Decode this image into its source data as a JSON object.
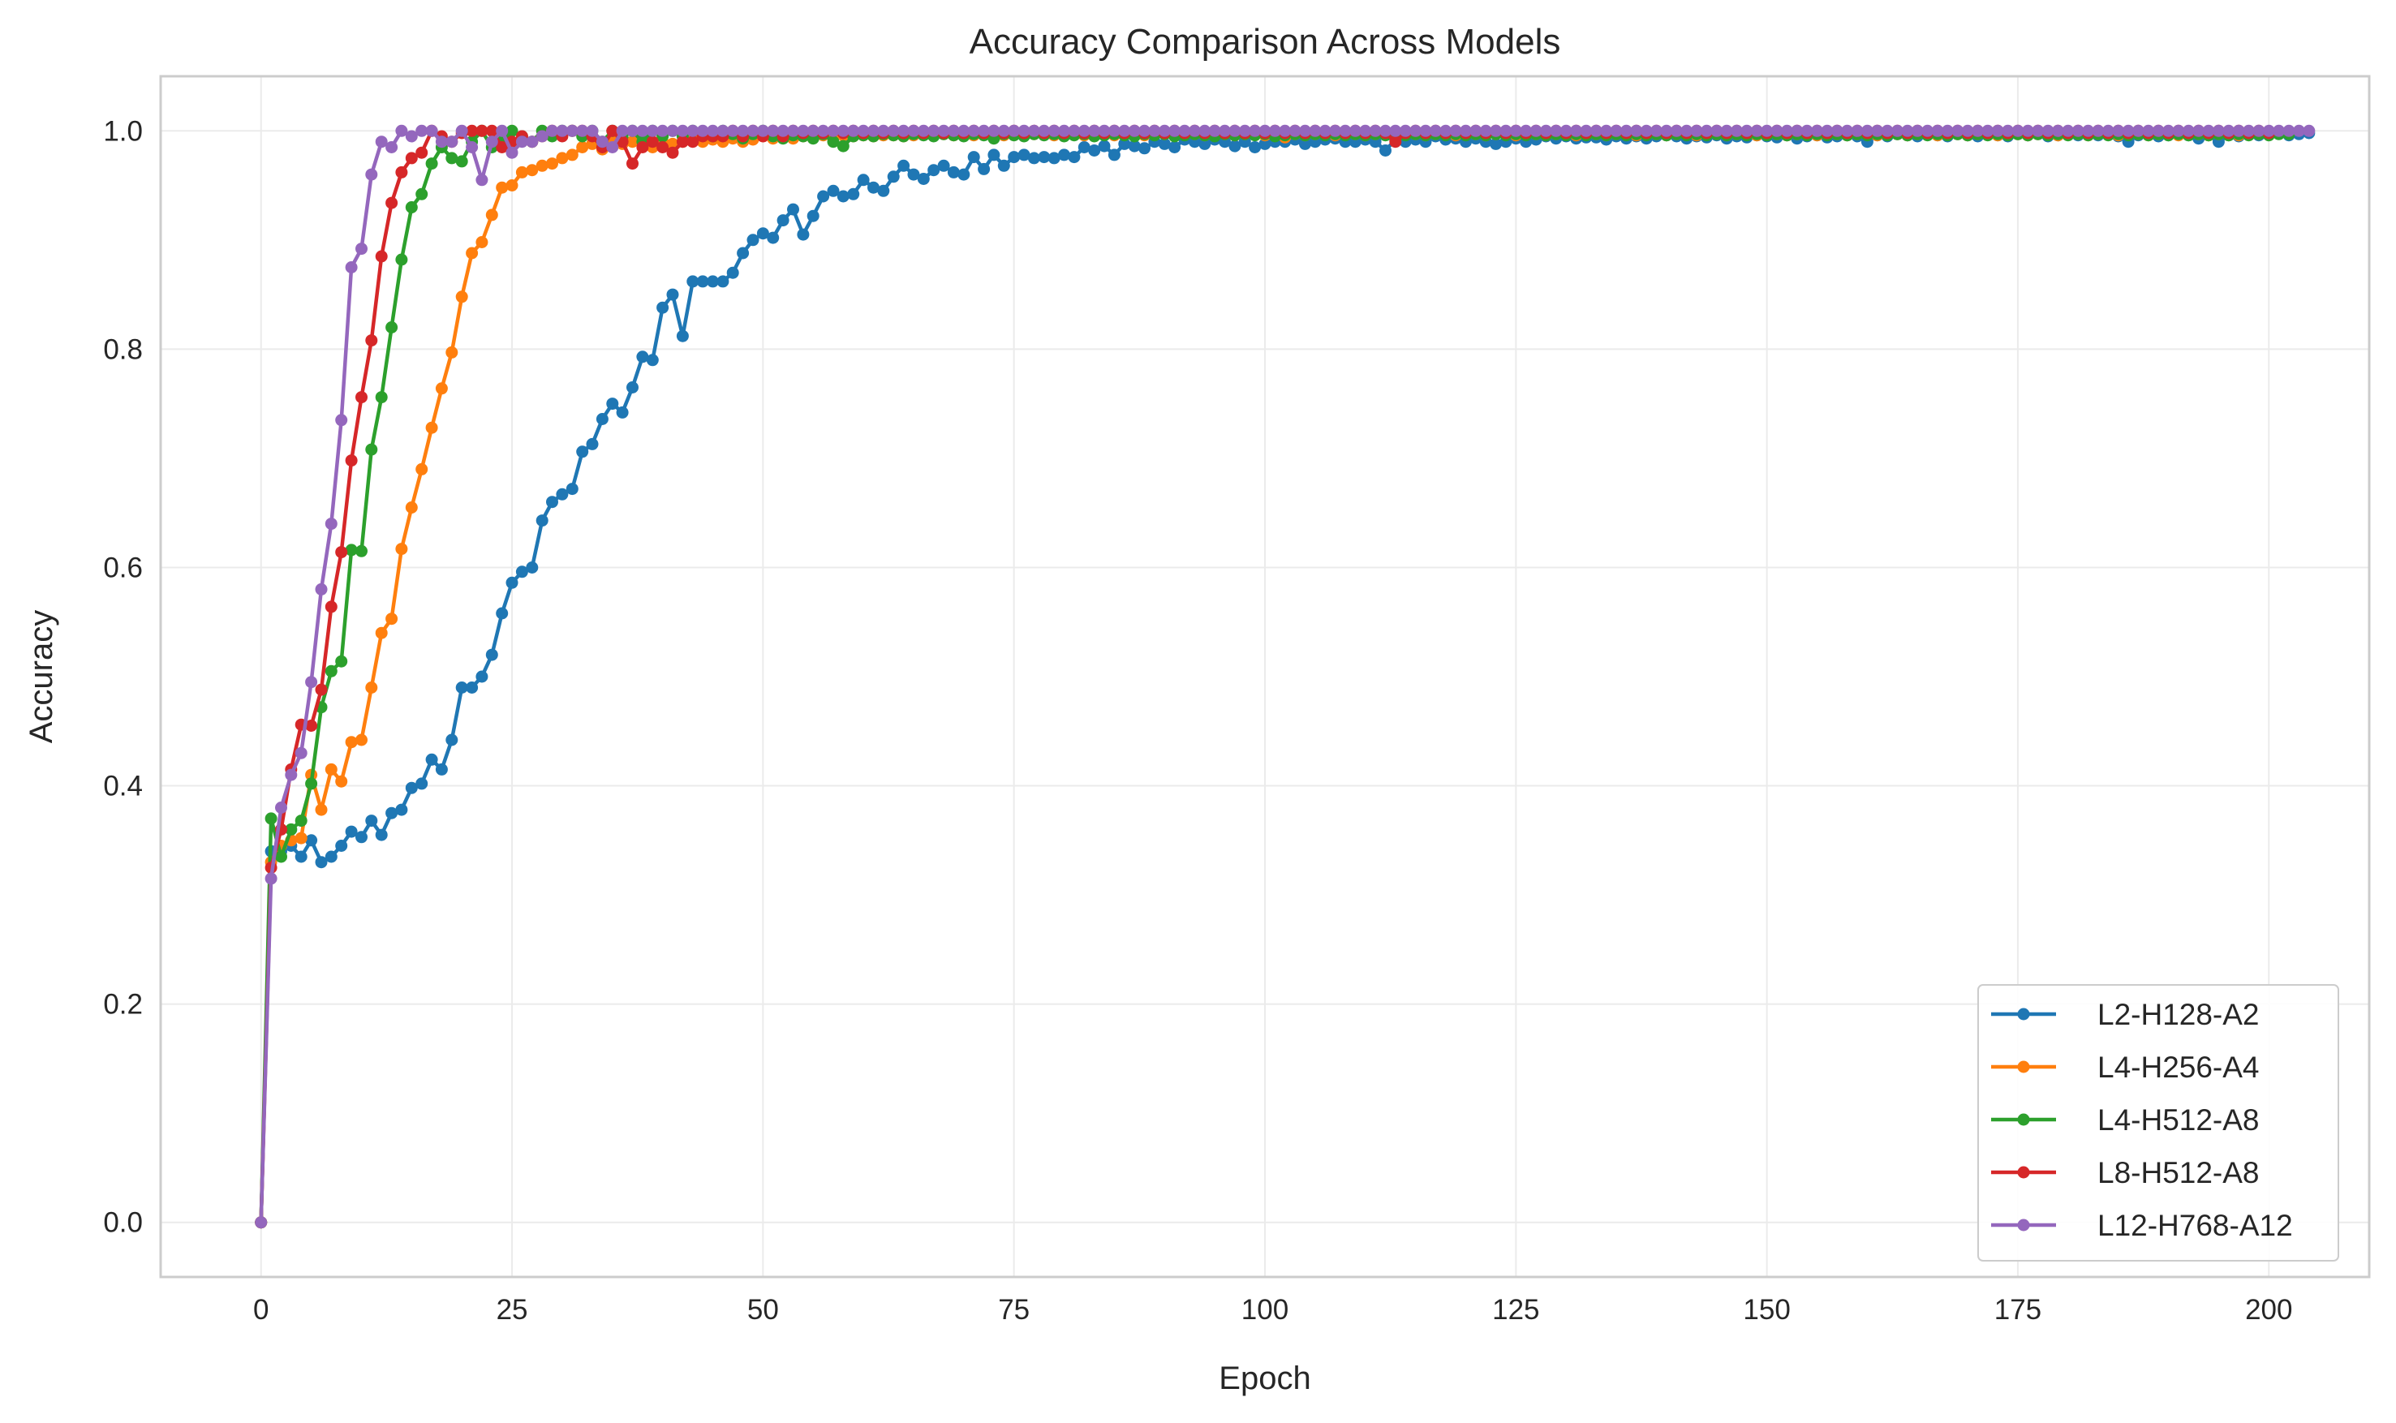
{
  "chart_data": {
    "type": "line",
    "title": "Accuracy Comparison Across Models",
    "xlabel": "Epoch",
    "ylabel": "Accuracy",
    "xlim": [
      -10,
      210
    ],
    "ylim": [
      -0.05,
      1.05
    ],
    "xticks": [
      0,
      25,
      50,
      75,
      100,
      125,
      150,
      175,
      200
    ],
    "xtick_labels": [
      "0",
      "25",
      "50",
      "75",
      "100",
      "125",
      "150",
      "175",
      "200"
    ],
    "yticks": [
      0.0,
      0.2,
      0.4,
      0.6,
      0.8,
      1.0
    ],
    "ytick_labels": [
      "0.0",
      "0.2",
      "0.4",
      "0.6",
      "0.8",
      "1.0"
    ],
    "grid": true,
    "legend_position": "lower-right",
    "x_range": [
      0,
      200
    ],
    "series": [
      {
        "name": "L2-H128-A2",
        "color": "#1f77b4",
        "values": [
          0,
          0.34,
          0.34,
          0.345,
          0.335,
          0.35,
          0.33,
          0.335,
          0.345,
          0.358,
          0.353,
          0.368,
          0.355,
          0.375,
          0.378,
          0.398,
          0.402,
          0.424,
          0.415,
          0.442,
          0.49,
          0.49,
          0.5,
          0.52,
          0.558,
          0.586,
          0.596,
          0.6,
          0.643,
          0.66,
          0.667,
          0.672,
          0.706,
          0.713,
          0.736,
          0.75,
          0.742,
          0.765,
          0.793,
          0.79,
          0.838,
          0.85,
          0.812,
          0.862,
          0.862,
          0.862,
          0.862,
          0.87,
          0.888,
          0.9,
          0.906,
          0.902,
          0.918,
          0.928,
          0.905,
          0.922,
          0.94,
          0.945,
          0.94,
          0.942,
          0.955,
          0.948,
          0.945,
          0.958,
          0.968,
          0.96,
          0.956,
          0.964,
          0.968,
          0.962,
          0.96,
          0.976,
          0.965,
          0.978,
          0.968,
          0.976,
          0.978,
          0.975,
          0.976,
          0.975,
          0.978,
          0.976,
          0.985,
          0.982,
          0.986,
          0.978,
          0.988,
          0.986,
          0.984,
          0.99,
          0.988,
          0.985,
          0.992,
          0.99,
          0.988,
          0.992,
          0.99,
          0.986,
          0.99,
          0.985,
          0.988,
          0.99,
          0.99,
          0.992,
          0.988,
          0.99,
          0.992,
          0.993,
          0.99,
          0.99,
          0.992,
          0.99,
          0.982,
          0.992,
          0.99,
          0.992,
          0.99,
          0.995,
          0.992,
          0.993,
          0.99,
          0.993,
          0.99,
          0.988,
          0.99,
          0.993,
          0.99,
          0.992,
          0.995,
          0.993,
          0.995,
          0.993,
          0.994,
          0.994,
          0.992,
          0.995,
          0.993,
          0.995,
          0.993,
          0.995,
          0.996,
          0.995,
          0.993,
          0.995,
          0.994,
          0.996,
          0.993,
          0.995,
          0.994,
          0.996,
          0.995,
          0.994,
          0.996,
          0.993,
          0.995,
          0.996,
          0.994,
          0.995,
          0.996,
          0.995,
          0.99,
          0.996,
          0.995,
          0.997,
          0.996,
          0.995,
          0.997,
          0.996,
          0.995,
          0.997,
          0.996,
          0.995,
          0.997,
          0.996,
          0.995,
          0.997,
          0.996,
          0.997,
          0.995,
          0.996,
          0.997,
          0.996,
          0.997,
          0.996,
          0.997,
          0.995,
          0.99,
          0.996,
          0.997,
          0.995,
          0.996,
          0.997,
          0.996,
          0.993,
          0.996,
          0.99,
          0.996,
          0.995,
          0.997,
          0.996,
          0.997,
          0.998,
          0.996,
          0.997,
          0.998
        ]
      },
      {
        "name": "L4-H256-A4",
        "color": "#ff7f0e",
        "values": [
          0,
          0.33,
          0.345,
          0.35,
          0.352,
          0.41,
          0.378,
          0.415,
          0.404,
          0.44,
          0.442,
          0.49,
          0.54,
          0.553,
          0.617,
          0.655,
          0.69,
          0.728,
          0.764,
          0.797,
          0.848,
          0.888,
          0.898,
          0.923,
          0.948,
          0.95,
          0.962,
          0.964,
          0.968,
          0.97,
          0.975,
          0.978,
          0.985,
          0.988,
          0.983,
          0.99,
          0.988,
          0.99,
          0.992,
          0.985,
          0.99,
          0.988,
          0.99,
          0.992,
          0.99,
          0.992,
          0.99,
          0.993,
          0.99,
          0.992,
          0.995,
          0.993,
          0.995,
          0.993,
          0.995,
          0.995,
          0.996,
          0.995,
          0.996,
          0.995,
          0.996,
          0.995,
          0.996,
          0.996,
          0.995,
          0.996,
          0.997,
          0.996,
          0.997,
          0.996,
          0.997,
          0.996,
          0.997,
          0.997,
          0.996,
          0.997,
          0.996,
          0.997,
          0.997,
          0.996,
          0.997,
          0.997,
          0.996,
          0.997,
          0.997,
          0.996,
          0.997,
          0.997,
          0.996,
          0.997,
          0.997,
          0.996,
          0.997,
          0.997,
          0.996,
          0.997,
          0.997,
          0.996,
          0.997,
          0.997,
          0.996,
          0.997,
          0.994,
          0.997,
          0.996,
          0.997,
          0.997,
          0.996,
          0.997,
          0.997,
          0.996,
          0.997,
          0.997,
          0.996,
          0.997,
          0.997,
          0.996,
          0.997,
          0.997,
          0.996,
          0.997,
          0.997,
          0.996,
          0.997,
          0.997,
          0.996,
          0.997,
          0.997,
          0.996,
          0.997,
          0.997,
          0.996,
          0.997,
          0.997,
          0.996,
          0.997,
          0.997,
          0.996,
          0.997,
          0.997,
          0.996,
          0.997,
          0.997,
          0.996,
          0.997,
          0.997,
          0.996,
          0.997,
          0.997,
          0.996,
          0.997,
          0.997,
          0.996,
          0.997,
          0.997,
          0.996,
          0.997,
          0.997,
          0.996,
          0.997,
          0.997,
          0.996,
          0.997,
          0.997,
          0.996,
          0.997,
          0.997,
          0.996,
          0.997,
          0.997,
          0.996,
          0.997,
          0.997,
          0.996,
          0.997,
          0.997,
          0.996,
          0.997,
          0.997,
          0.996,
          0.997,
          0.997,
          0.996,
          0.997,
          0.997,
          0.996,
          0.997,
          0.997,
          0.996,
          0.997,
          0.997,
          0.996,
          0.997,
          0.997,
          0.996,
          0.997,
          0.997,
          0.996,
          0.997,
          0.997
        ]
      },
      {
        "name": "L4-H512-A8",
        "color": "#2ca02c",
        "values": [
          0,
          0.37,
          0.335,
          0.36,
          0.368,
          0.402,
          0.472,
          0.505,
          0.514,
          0.616,
          0.615,
          0.708,
          0.756,
          0.82,
          0.882,
          0.93,
          0.942,
          0.97,
          0.985,
          0.975,
          0.972,
          0.99,
          1.0,
          0.985,
          0.99,
          1.0,
          0.995,
          0.99,
          1.0,
          0.995,
          1.0,
          1.0,
          0.995,
          1.0,
          0.99,
          1.0,
          0.995,
          1.0,
          0.99,
          1.0,
          0.995,
          1.0,
          0.995,
          1.0,
          0.997,
          0.995,
          1.0,
          0.997,
          0.993,
          0.997,
          1.0,
          0.995,
          0.993,
          0.996,
          0.995,
          0.993,
          0.997,
          0.99,
          0.986,
          0.995,
          0.996,
          0.995,
          0.997,
          0.996,
          0.995,
          0.997,
          0.996,
          0.995,
          0.997,
          0.996,
          0.995,
          0.997,
          0.996,
          0.993,
          0.997,
          0.996,
          0.995,
          0.997,
          0.996,
          0.997,
          0.995,
          0.996,
          0.997,
          0.995,
          0.996,
          0.997,
          0.996,
          0.995,
          0.997,
          0.996,
          0.997,
          0.995,
          0.996,
          0.997,
          0.996,
          0.995,
          0.997,
          0.996,
          0.997,
          0.996,
          0.997,
          0.995,
          0.996,
          0.997,
          0.996,
          0.997,
          0.996,
          0.997,
          0.996,
          0.997,
          0.996,
          0.997,
          0.996,
          0.997,
          0.996,
          0.997,
          0.996,
          0.997,
          0.996,
          0.997,
          0.996,
          0.997,
          0.996,
          0.997,
          0.996,
          0.997,
          0.996,
          0.997,
          0.996,
          0.997,
          0.996,
          0.997,
          0.996,
          0.997,
          0.996,
          0.997,
          0.996,
          0.997,
          0.996,
          0.997,
          0.996,
          0.997,
          0.996,
          0.997,
          0.996,
          0.997,
          0.996,
          0.997,
          0.996,
          0.997,
          0.996,
          0.997,
          0.996,
          0.997,
          0.996,
          0.997,
          0.996,
          0.997,
          0.996,
          0.997,
          0.996,
          0.997,
          0.996,
          0.997,
          0.996,
          0.997,
          0.996,
          0.997,
          0.996,
          0.997,
          0.996,
          0.997,
          0.996,
          0.997,
          0.996,
          0.997,
          0.996,
          0.997,
          0.996,
          0.997,
          0.996,
          0.997,
          0.996,
          0.997,
          0.996,
          0.997,
          0.996,
          0.997,
          0.996,
          0.997,
          0.996,
          0.997,
          0.996,
          0.997,
          0.996,
          0.997,
          0.996,
          0.997,
          0.996,
          0.997,
          0.996,
          0.997,
          0.997
        ]
      },
      {
        "name": "L8-H512-A8",
        "color": "#d62728",
        "values": [
          0,
          0.325,
          0.36,
          0.415,
          0.456,
          0.455,
          0.488,
          0.564,
          0.614,
          0.698,
          0.756,
          0.808,
          0.885,
          0.934,
          0.962,
          0.975,
          0.98,
          1.0,
          0.995,
          0.99,
          0.998,
          1.0,
          1.0,
          1.0,
          0.985,
          0.99,
          0.995,
          0.99,
          0.995,
          1.0,
          0.995,
          1.0,
          1.0,
          0.995,
          0.985,
          1.0,
          0.99,
          0.97,
          0.985,
          0.99,
          0.985,
          0.98,
          0.99,
          0.99,
          0.995,
          0.995,
          0.995,
          1.0,
          0.995,
          1.0,
          0.995,
          1.0,
          0.995,
          1.0,
          0.998,
          1.0,
          0.998,
          1.0,
          0.998,
          1.0,
          0.998,
          1.0,
          0.998,
          1.0,
          0.998,
          1.0,
          0.998,
          1.0,
          0.998,
          1.0,
          0.998,
          1.0,
          0.998,
          1.0,
          0.998,
          1.0,
          0.998,
          1.0,
          0.998,
          1.0,
          0.998,
          1.0,
          0.998,
          1.0,
          0.998,
          1.0,
          0.998,
          1.0,
          0.998,
          1.0,
          0.998,
          1.0,
          0.998,
          1.0,
          0.998,
          1.0,
          0.998,
          1.0,
          0.998,
          1.0,
          0.998,
          1.0,
          0.998,
          1.0,
          0.998,
          1.0,
          0.998,
          1.0,
          0.998,
          1.0,
          0.998,
          1.0,
          0.998,
          0.99,
          0.998,
          1.0,
          0.998,
          1.0,
          0.998,
          1.0,
          0.998,
          1.0,
          0.998,
          1.0,
          0.998,
          1.0,
          0.998,
          1.0,
          0.998,
          1.0,
          0.998,
          1.0,
          0.998,
          1.0,
          0.998,
          1.0,
          0.998,
          1.0,
          0.998,
          1.0,
          0.998,
          1.0,
          0.998,
          1.0,
          0.998,
          1.0,
          0.998,
          1.0,
          0.998,
          1.0,
          0.998,
          1.0,
          0.998,
          1.0,
          0.998,
          1.0,
          0.998,
          1.0,
          0.998,
          1.0,
          0.998,
          1.0,
          0.998,
          1.0,
          0.998,
          1.0,
          0.998,
          1.0,
          0.998,
          1.0,
          0.998,
          1.0,
          0.998,
          1.0,
          0.998,
          1.0,
          0.998,
          1.0,
          0.998,
          1.0,
          0.998,
          1.0,
          0.998,
          1.0,
          0.998,
          1.0,
          0.998,
          1.0,
          0.998,
          1.0,
          0.998,
          1.0,
          0.998,
          1.0,
          0.998,
          1.0,
          0.998,
          1.0,
          0.998,
          1.0,
          0.998
        ]
      },
      {
        "name": "L12-H768-A12",
        "color": "#9467bd",
        "values": [
          0,
          0.315,
          0.38,
          0.41,
          0.43,
          0.495,
          0.58,
          0.64,
          0.735,
          0.875,
          0.892,
          0.96,
          0.99,
          0.985,
          1.0,
          0.995,
          1.0,
          1.0,
          0.99,
          0.99,
          1.0,
          0.985,
          0.955,
          0.99,
          1.0,
          0.98,
          0.99,
          0.99,
          0.995,
          1.0,
          1.0,
          1.0,
          1.0,
          1.0,
          0.99,
          0.985,
          1.0,
          1.0,
          1.0,
          1.0,
          1.0,
          1.0,
          1.0,
          1.0,
          1.0,
          1.0,
          1.0,
          1.0,
          1.0,
          1.0,
          1.0,
          1.0,
          1.0,
          1.0,
          1.0,
          1.0,
          1.0,
          1.0,
          1.0,
          1.0,
          1.0,
          1.0,
          1.0,
          1.0,
          1.0,
          1.0,
          1.0,
          1.0,
          1.0,
          1.0,
          1.0,
          1.0,
          1.0,
          1.0,
          1.0,
          1.0,
          1.0,
          1.0,
          1.0,
          1.0,
          1.0,
          1.0,
          1.0,
          1.0,
          1.0,
          1.0,
          1.0,
          1.0,
          1.0,
          1.0,
          1.0,
          1.0,
          1.0,
          1.0,
          1.0,
          1.0,
          1.0,
          1.0,
          1.0,
          1.0,
          1.0,
          1.0,
          1.0,
          1.0,
          1.0,
          1.0,
          1.0,
          1.0,
          1.0,
          1.0,
          1.0,
          1.0,
          1.0,
          1.0,
          1.0,
          1.0,
          1.0,
          1.0,
          1.0,
          1.0,
          1.0,
          1.0,
          1.0,
          1.0,
          1.0,
          1.0,
          1.0,
          1.0,
          1.0,
          1.0,
          1.0,
          1.0,
          1.0,
          1.0,
          1.0,
          1.0,
          1.0,
          1.0,
          1.0,
          1.0,
          1.0,
          1.0,
          1.0,
          1.0,
          1.0,
          1.0,
          1.0,
          1.0,
          1.0,
          1.0,
          1.0,
          1.0,
          1.0,
          1.0,
          1.0,
          1.0,
          1.0,
          1.0,
          1.0,
          1.0,
          1.0,
          1.0,
          1.0,
          1.0,
          1.0,
          1.0,
          1.0,
          1.0,
          1.0,
          1.0,
          1.0,
          1.0,
          1.0,
          1.0,
          1.0,
          1.0,
          1.0,
          1.0,
          1.0,
          1.0,
          1.0,
          1.0,
          1.0,
          1.0,
          1.0,
          1.0,
          1.0,
          1.0,
          1.0,
          1.0,
          1.0,
          1.0,
          1.0,
          1.0,
          1.0,
          1.0,
          1.0,
          1.0,
          1.0,
          1.0,
          1.0,
          1.0,
          1.0,
          1.0,
          1.0
        ]
      }
    ]
  }
}
